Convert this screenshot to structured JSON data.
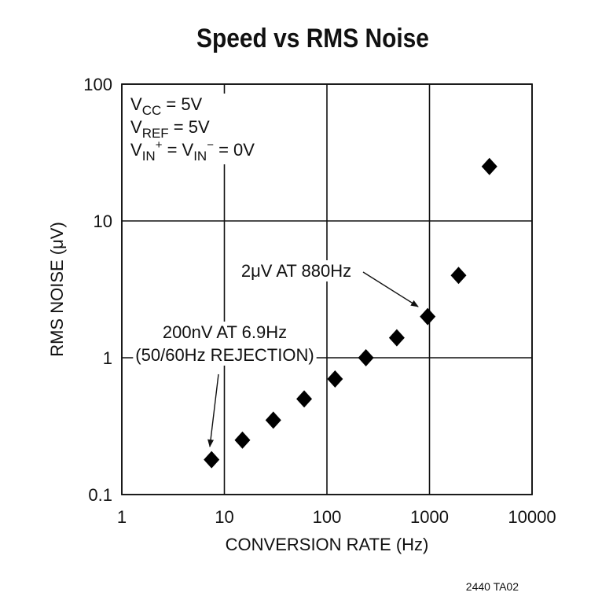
{
  "chart_data": {
    "type": "scatter",
    "title": "Speed vs RMS Noise",
    "x_label": "CONVERSION RATE (Hz)",
    "y_label": "RMS NOISE (μV)",
    "x": [
      7.5,
      15,
      30,
      60,
      120,
      240,
      480,
      960,
      1920,
      3840
    ],
    "values": [
      0.18,
      0.25,
      0.35,
      0.5,
      0.7,
      1.0,
      1.4,
      2.0,
      4.0,
      25
    ],
    "color": "#000000",
    "xscale": "log",
    "yscale": "log",
    "xlim": [
      1,
      10000
    ],
    "ylim": [
      0.1,
      100
    ],
    "xticks": [
      1,
      10,
      100,
      1000,
      10000
    ],
    "yticks": [
      0.1,
      1,
      10,
      100
    ],
    "grid": true,
    "conditions": [
      [
        {
          "text": "V"
        },
        {
          "text": "CC",
          "sub": true
        },
        {
          "text": " = 5V"
        }
      ],
      [
        {
          "text": "V"
        },
        {
          "text": "REF",
          "sub": true
        },
        {
          "text": " = 5V"
        }
      ],
      [
        {
          "text": "V"
        },
        {
          "text": "IN",
          "sub": true
        },
        {
          "text": "+",
          "sup": true
        },
        {
          "text": " = V"
        },
        {
          "text": "IN",
          "sub": true
        },
        {
          "text": "−",
          "sup": true
        },
        {
          "text": " = 0V"
        }
      ]
    ],
    "annotations": [
      {
        "lines": [
          "2μV AT 880Hz"
        ]
      },
      {
        "lines": [
          "200nV AT 6.9Hz",
          "(50/60Hz REJECTION)"
        ]
      }
    ],
    "footnote": "2440 TA02"
  }
}
